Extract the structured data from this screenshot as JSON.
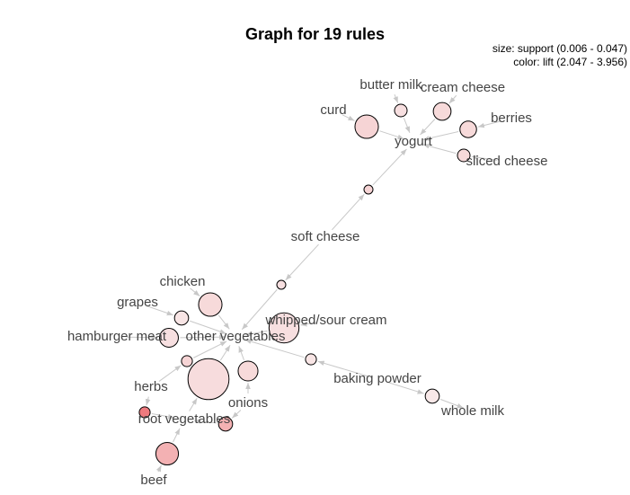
{
  "title": "Graph for 19 rules",
  "legend": {
    "size": "size: support (0.006 - 0.047)",
    "color": "color: lift (2.047 - 3.956)"
  },
  "colors": {
    "edge": "#c8c8c8",
    "node_stroke": "#000000",
    "label": "#444444",
    "lift_low": "#f8e8e8",
    "lift_high": "#ee7a7e"
  },
  "items": [
    {
      "id": "butter_milk",
      "label": "butter milk"
    },
    {
      "id": "cream_cheese",
      "label": "cream cheese"
    },
    {
      "id": "curd",
      "label": "curd"
    },
    {
      "id": "berries",
      "label": "berries"
    },
    {
      "id": "yogurt",
      "label": "yogurt"
    },
    {
      "id": "sliced_cheese",
      "label": "sliced cheese"
    },
    {
      "id": "soft_cheese",
      "label": "soft cheese"
    },
    {
      "id": "chicken",
      "label": "chicken"
    },
    {
      "id": "grapes",
      "label": "grapes"
    },
    {
      "id": "whipped_sour_cream",
      "label": "whipped/sour cream"
    },
    {
      "id": "hamburger_meat",
      "label": "hamburger meat"
    },
    {
      "id": "other_vegetables",
      "label": "other vegetables"
    },
    {
      "id": "baking_powder",
      "label": "baking powder"
    },
    {
      "id": "herbs",
      "label": "herbs"
    },
    {
      "id": "onions",
      "label": "onions"
    },
    {
      "id": "whole_milk",
      "label": "whole milk"
    },
    {
      "id": "root_vegetables",
      "label": "root vegetables"
    },
    {
      "id": "beef",
      "label": "beef"
    }
  ],
  "rules": [
    {
      "id": "r1",
      "support": 0.008,
      "lift": 2.2,
      "lhs": [
        "butter_milk"
      ],
      "rhs": [
        "yogurt"
      ]
    },
    {
      "id": "r2",
      "support": 0.012,
      "lift": 2.3,
      "lhs": [
        "cream_cheese"
      ],
      "rhs": [
        "yogurt"
      ]
    },
    {
      "id": "r3",
      "support": 0.018,
      "lift": 2.4,
      "lhs": [
        "curd"
      ],
      "rhs": [
        "yogurt"
      ]
    },
    {
      "id": "r4",
      "support": 0.011,
      "lift": 2.3,
      "lhs": [
        "berries"
      ],
      "rhs": [
        "yogurt"
      ]
    },
    {
      "id": "r5",
      "support": 0.008,
      "lift": 2.3,
      "lhs": [
        "sliced_cheese"
      ],
      "rhs": [
        "yogurt"
      ]
    },
    {
      "id": "r6",
      "support": 0.006,
      "lift": 2.4,
      "lhs": [
        "soft_cheese"
      ],
      "rhs": [
        "yogurt"
      ]
    },
    {
      "id": "r7",
      "support": 0.006,
      "lift": 2.2,
      "lhs": [
        "soft_cheese"
      ],
      "rhs": [
        "other_vegetables"
      ]
    },
    {
      "id": "r8",
      "support": 0.018,
      "lift": 2.3,
      "lhs": [
        "chicken"
      ],
      "rhs": [
        "other_vegetables"
      ]
    },
    {
      "id": "r9",
      "support": 0.009,
      "lift": 2.1,
      "lhs": [
        "grapes"
      ],
      "rhs": [
        "other_vegetables"
      ]
    },
    {
      "id": "r10",
      "support": 0.027,
      "lift": 2.2,
      "lhs": [
        "whipped_sour_cream"
      ],
      "rhs": [
        "other_vegetables"
      ]
    },
    {
      "id": "r11",
      "support": 0.013,
      "lift": 2.2,
      "lhs": [
        "hamburger_meat"
      ],
      "rhs": [
        "other_vegetables"
      ]
    },
    {
      "id": "r12",
      "support": 0.007,
      "lift": 2.1,
      "lhs": [
        "baking_powder"
      ],
      "rhs": [
        "other_vegetables"
      ]
    },
    {
      "id": "r13",
      "support": 0.009,
      "lift": 2.05,
      "lhs": [
        "baking_powder"
      ],
      "rhs": [
        "whole_milk"
      ]
    },
    {
      "id": "r14",
      "support": 0.007,
      "lift": 2.4,
      "lhs": [
        "herbs"
      ],
      "rhs": [
        "other_vegetables"
      ]
    },
    {
      "id": "r15",
      "support": 0.047,
      "lift": 2.25,
      "lhs": [
        "root_vegetables"
      ],
      "rhs": [
        "other_vegetables"
      ]
    },
    {
      "id": "r16",
      "support": 0.014,
      "lift": 2.3,
      "lhs": [
        "onions"
      ],
      "rhs": [
        "other_vegetables"
      ]
    },
    {
      "id": "r17",
      "support": 0.007,
      "lift": 3.956,
      "lhs": [
        "herbs"
      ],
      "rhs": [
        "root_vegetables"
      ]
    },
    {
      "id": "r18",
      "support": 0.009,
      "lift": 3.0,
      "lhs": [
        "onions"
      ],
      "rhs": [
        "root_vegetables"
      ]
    },
    {
      "id": "r19",
      "support": 0.017,
      "lift": 3.0,
      "lhs": [
        "beef"
      ],
      "rhs": [
        "root_vegetables"
      ]
    }
  ]
}
